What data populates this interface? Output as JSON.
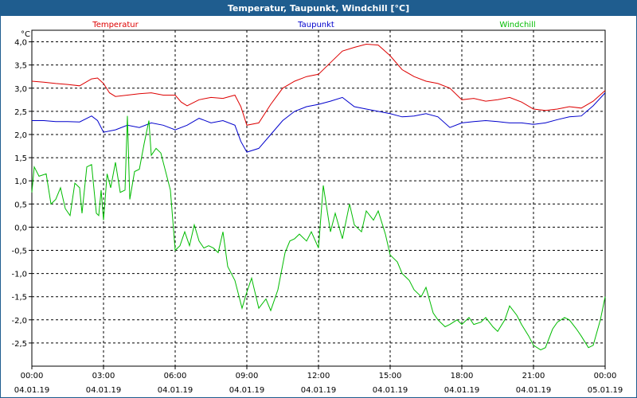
{
  "window": {
    "title": "Temperatur, Taupunkt, Windchill [°C]"
  },
  "colors": {
    "titlebar": "#1f5d8f",
    "temperatur": "#dd0000",
    "taupunkt": "#0000cc",
    "windchill": "#00bb00",
    "grid": "#000000"
  },
  "chart_data": {
    "type": "line",
    "title": "Temperatur, Taupunkt, Windchill [°C]",
    "ylabel": "°C",
    "ylim": [
      -3.0,
      4.25
    ],
    "yticks": [
      4.0,
      3.5,
      3.0,
      2.5,
      2.0,
      1.5,
      1.0,
      0.5,
      0.0,
      -0.5,
      -1.0,
      -1.5,
      -2.0,
      -2.5
    ],
    "ytick_labels": [
      "4,0",
      "3,5",
      "3,0",
      "2,5",
      "2,0",
      "1,5",
      "1,0",
      "0,5",
      "0,0",
      "-0,5",
      "-1,0",
      "-1,5",
      "-2,0",
      "-2,5"
    ],
    "xlim": [
      0,
      24
    ],
    "xticks": [
      {
        "time": "00:00",
        "date": "04.01.19"
      },
      {
        "time": "03:00",
        "date": "04.01.19"
      },
      {
        "time": "06:00",
        "date": "04.01.19"
      },
      {
        "time": "09:00",
        "date": "04.01.19"
      },
      {
        "time": "12:00",
        "date": "04.01.19"
      },
      {
        "time": "15:00",
        "date": "04.01.19"
      },
      {
        "time": "18:00",
        "date": "04.01.19"
      },
      {
        "time": "21:00",
        "date": "04.01.19"
      },
      {
        "time": "00:00",
        "date": "05.01.19"
      }
    ],
    "grid": true,
    "legend_position": "top",
    "series": [
      {
        "name": "Temperatur",
        "color": "#dd0000",
        "x": [
          0,
          0.5,
          1,
          1.5,
          2,
          2.5,
          2.75,
          3,
          3.25,
          3.5,
          4,
          4.5,
          5,
          5.5,
          6,
          6.25,
          6.5,
          7,
          7.5,
          8,
          8.5,
          8.75,
          9,
          9.5,
          10,
          10.5,
          11,
          11.5,
          12,
          12.5,
          13,
          13.5,
          14,
          14.5,
          15,
          15.5,
          16,
          16.5,
          17,
          17.5,
          18,
          18.5,
          19,
          19.5,
          20,
          20.5,
          21,
          21.5,
          22,
          22.5,
          23,
          23.5,
          24
        ],
        "y": [
          3.15,
          3.13,
          3.1,
          3.08,
          3.05,
          3.2,
          3.22,
          3.1,
          2.9,
          2.82,
          2.85,
          2.88,
          2.9,
          2.85,
          2.85,
          2.7,
          2.62,
          2.75,
          2.8,
          2.78,
          2.85,
          2.6,
          2.2,
          2.25,
          2.65,
          3.0,
          3.15,
          3.25,
          3.3,
          3.55,
          3.8,
          3.88,
          3.95,
          3.93,
          3.7,
          3.4,
          3.25,
          3.15,
          3.1,
          3.0,
          2.75,
          2.78,
          2.72,
          2.75,
          2.8,
          2.7,
          2.55,
          2.52,
          2.55,
          2.6,
          2.57,
          2.72,
          2.95
        ]
      },
      {
        "name": "Taupunkt",
        "color": "#0000cc",
        "x": [
          0,
          0.5,
          1,
          1.5,
          2,
          2.5,
          2.75,
          3,
          3.5,
          4,
          4.5,
          5,
          5.5,
          6,
          6.5,
          7,
          7.5,
          8,
          8.5,
          8.75,
          9,
          9.5,
          10,
          10.5,
          11,
          11.5,
          12,
          12.5,
          13,
          13.5,
          14,
          14.5,
          15,
          15.5,
          16,
          16.5,
          17,
          17.5,
          18,
          18.5,
          19,
          19.5,
          20,
          20.5,
          21,
          21.5,
          22,
          22.5,
          23,
          23.5,
          24
        ],
        "y": [
          2.3,
          2.3,
          2.28,
          2.28,
          2.27,
          2.4,
          2.3,
          2.05,
          2.1,
          2.2,
          2.15,
          2.25,
          2.2,
          2.1,
          2.2,
          2.35,
          2.25,
          2.3,
          2.2,
          1.85,
          1.62,
          1.7,
          2.0,
          2.3,
          2.5,
          2.6,
          2.65,
          2.72,
          2.8,
          2.6,
          2.55,
          2.5,
          2.45,
          2.38,
          2.4,
          2.45,
          2.38,
          2.15,
          2.25,
          2.28,
          2.3,
          2.28,
          2.25,
          2.25,
          2.22,
          2.25,
          2.32,
          2.38,
          2.4,
          2.62,
          2.9
        ]
      },
      {
        "name": "Windchill",
        "color": "#00bb00",
        "x": [
          0,
          0.1,
          0.3,
          0.6,
          0.8,
          1.0,
          1.2,
          1.4,
          1.6,
          1.8,
          2.0,
          2.1,
          2.3,
          2.5,
          2.7,
          2.8,
          2.9,
          3.0,
          3.15,
          3.3,
          3.5,
          3.7,
          3.9,
          4.0,
          4.1,
          4.3,
          4.5,
          4.7,
          4.9,
          5.0,
          5.2,
          5.4,
          5.6,
          5.8,
          6.0,
          6.2,
          6.4,
          6.6,
          6.8,
          7.0,
          7.2,
          7.4,
          7.6,
          7.8,
          8.0,
          8.2,
          8.5,
          8.8,
          9.0,
          9.2,
          9.5,
          9.8,
          10.0,
          10.3,
          10.6,
          10.8,
          11.0,
          11.2,
          11.5,
          11.7,
          12.0,
          12.2,
          12.5,
          12.7,
          13.0,
          13.3,
          13.5,
          13.8,
          14.0,
          14.3,
          14.5,
          14.8,
          15.0,
          15.3,
          15.5,
          15.8,
          16.0,
          16.3,
          16.5,
          16.8,
          17.0,
          17.3,
          17.5,
          17.8,
          18.0,
          18.3,
          18.5,
          18.8,
          19.0,
          19.3,
          19.5,
          19.8,
          20.0,
          20.3,
          20.5,
          20.8,
          21.0,
          21.3,
          21.5,
          21.8,
          22.0,
          22.3,
          22.5,
          22.8,
          23.0,
          23.3,
          23.5,
          23.8,
          24.0
        ],
        "y": [
          0.75,
          1.3,
          1.1,
          1.15,
          0.5,
          0.6,
          0.85,
          0.4,
          0.25,
          0.95,
          0.85,
          0.3,
          1.3,
          1.35,
          0.3,
          0.25,
          0.8,
          0.15,
          1.15,
          0.85,
          1.4,
          0.75,
          0.8,
          2.4,
          0.6,
          1.2,
          1.25,
          1.8,
          2.3,
          1.55,
          1.7,
          1.6,
          1.2,
          0.8,
          -0.5,
          -0.4,
          -0.1,
          -0.4,
          0.05,
          -0.3,
          -0.45,
          -0.4,
          -0.45,
          -0.55,
          -0.1,
          -0.85,
          -1.15,
          -1.75,
          -1.4,
          -1.1,
          -1.75,
          -1.55,
          -1.8,
          -1.35,
          -0.55,
          -0.3,
          -0.25,
          -0.15,
          -0.3,
          -0.1,
          -0.45,
          0.9,
          -0.1,
          0.3,
          -0.25,
          0.5,
          0.05,
          -0.1,
          0.35,
          0.15,
          0.35,
          -0.15,
          -0.6,
          -0.75,
          -1.0,
          -1.15,
          -1.35,
          -1.5,
          -1.3,
          -1.85,
          -2.0,
          -2.15,
          -2.1,
          -2.0,
          -2.1,
          -1.95,
          -2.1,
          -2.05,
          -1.95,
          -2.15,
          -2.25,
          -2.0,
          -1.7,
          -1.9,
          -2.1,
          -2.35,
          -2.55,
          -2.65,
          -2.6,
          -2.2,
          -2.05,
          -1.95,
          -2.0,
          -2.2,
          -2.35,
          -2.6,
          -2.55,
          -2.0,
          -1.5
        ]
      }
    ]
  }
}
